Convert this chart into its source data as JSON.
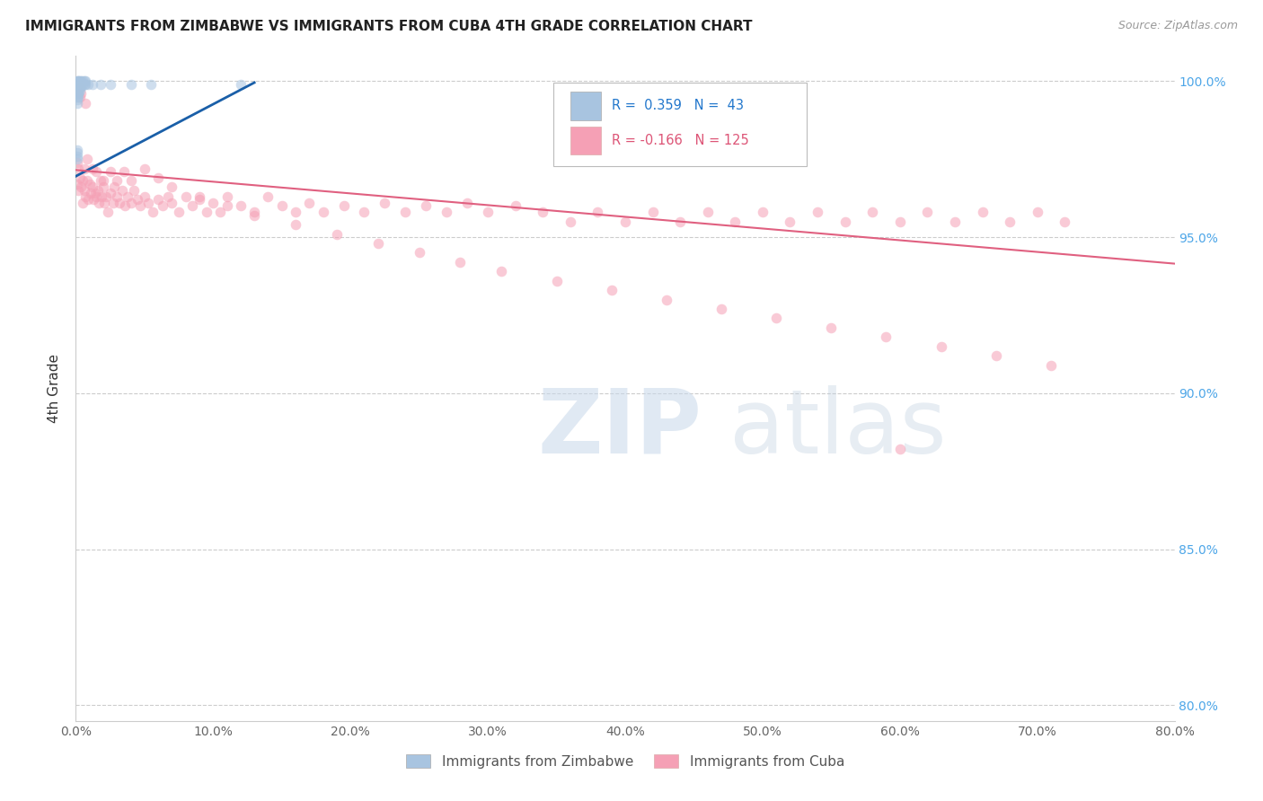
{
  "title": "IMMIGRANTS FROM ZIMBABWE VS IMMIGRANTS FROM CUBA 4TH GRADE CORRELATION CHART",
  "source_text": "Source: ZipAtlas.com",
  "ylabel": "4th Grade",
  "xlim": [
    0.0,
    0.8
  ],
  "ylim": [
    0.795,
    1.008
  ],
  "xtick_labels": [
    "0.0%",
    "",
    "",
    "",
    "",
    "",
    "",
    "",
    "10.0%",
    "",
    "",
    "",
    "",
    "",
    "",
    "",
    "20.0%",
    "",
    "",
    "",
    "",
    "",
    "",
    "",
    "30.0%",
    "",
    "",
    "",
    "",
    "",
    "",
    "",
    "40.0%",
    "",
    "",
    "",
    "",
    "",
    "",
    "",
    "50.0%",
    "",
    "",
    "",
    "",
    "",
    "",
    "",
    "60.0%",
    "",
    "",
    "",
    "",
    "",
    "",
    "",
    "70.0%",
    "",
    "",
    "",
    "",
    "",
    "",
    "",
    "80.0%"
  ],
  "xtick_vals_major": [
    0.0,
    0.1,
    0.2,
    0.3,
    0.4,
    0.5,
    0.6,
    0.7,
    0.8
  ],
  "ytick_vals": [
    0.8,
    0.85,
    0.9,
    0.95,
    1.0
  ],
  "ytick_labels_right": [
    "80.0%",
    "85.0%",
    "90.0%",
    "95.0%",
    "100.0%"
  ],
  "color_zimbabwe": "#a8c4e0",
  "color_cuba": "#f5a0b5",
  "color_line_zimbabwe": "#1a5fa8",
  "color_line_cuba": "#e06080",
  "marker_size": 70,
  "marker_alpha": 0.55,
  "grid_color": "#cccccc",
  "background_color": "#ffffff",
  "zim_line_x": [
    0.0,
    0.13
  ],
  "zim_line_y": [
    0.9695,
    0.9995
  ],
  "cuba_line_x": [
    0.0,
    0.8
  ],
  "cuba_line_y": [
    0.9715,
    0.9415
  ],
  "zimbabwe_x": [
    0.001,
    0.001,
    0.001,
    0.001,
    0.001,
    0.001,
    0.001,
    0.001,
    0.0015,
    0.0015,
    0.0015,
    0.0015,
    0.0015,
    0.002,
    0.002,
    0.002,
    0.002,
    0.002,
    0.002,
    0.003,
    0.003,
    0.003,
    0.003,
    0.004,
    0.004,
    0.004,
    0.005,
    0.005,
    0.006,
    0.006,
    0.007,
    0.007,
    0.009,
    0.012,
    0.018,
    0.025,
    0.04,
    0.055,
    0.12,
    0.0008,
    0.0008,
    0.0008,
    0.0008
  ],
  "zimbabwe_y": [
    1.0,
    0.999,
    0.998,
    0.997,
    0.996,
    0.995,
    0.994,
    0.993,
    1.0,
    0.999,
    0.998,
    0.997,
    0.996,
    1.0,
    0.999,
    0.998,
    0.997,
    0.996,
    0.995,
    1.0,
    0.999,
    0.998,
    0.997,
    1.0,
    0.999,
    0.998,
    1.0,
    0.999,
    1.0,
    0.999,
    1.0,
    0.999,
    0.999,
    0.999,
    0.999,
    0.999,
    0.999,
    0.999,
    0.999,
    0.975,
    0.976,
    0.977,
    0.978
  ],
  "cuba_x": [
    0.001,
    0.001,
    0.002,
    0.002,
    0.003,
    0.004,
    0.005,
    0.005,
    0.006,
    0.006,
    0.007,
    0.008,
    0.009,
    0.01,
    0.011,
    0.012,
    0.013,
    0.014,
    0.015,
    0.016,
    0.017,
    0.018,
    0.019,
    0.02,
    0.021,
    0.022,
    0.023,
    0.025,
    0.027,
    0.028,
    0.03,
    0.032,
    0.034,
    0.036,
    0.038,
    0.04,
    0.042,
    0.045,
    0.047,
    0.05,
    0.053,
    0.056,
    0.06,
    0.063,
    0.067,
    0.07,
    0.075,
    0.08,
    0.085,
    0.09,
    0.095,
    0.1,
    0.105,
    0.11,
    0.12,
    0.13,
    0.14,
    0.15,
    0.16,
    0.17,
    0.18,
    0.195,
    0.21,
    0.225,
    0.24,
    0.255,
    0.27,
    0.285,
    0.3,
    0.32,
    0.34,
    0.36,
    0.38,
    0.4,
    0.42,
    0.44,
    0.46,
    0.48,
    0.5,
    0.52,
    0.54,
    0.56,
    0.58,
    0.6,
    0.62,
    0.64,
    0.66,
    0.68,
    0.7,
    0.72,
    0.015,
    0.02,
    0.025,
    0.03,
    0.035,
    0.04,
    0.008,
    0.012,
    0.06,
    0.05,
    0.07,
    0.09,
    0.11,
    0.13,
    0.16,
    0.19,
    0.22,
    0.25,
    0.28,
    0.31,
    0.35,
    0.39,
    0.43,
    0.47,
    0.51,
    0.55,
    0.59,
    0.63,
    0.67,
    0.71,
    0.003,
    0.003,
    0.004,
    0.007,
    0.6
  ],
  "cuba_y": [
    0.974,
    0.967,
    0.972,
    0.965,
    0.969,
    0.966,
    0.968,
    0.961,
    0.965,
    0.972,
    0.963,
    0.968,
    0.962,
    0.967,
    0.964,
    0.966,
    0.962,
    0.964,
    0.963,
    0.965,
    0.961,
    0.968,
    0.963,
    0.966,
    0.961,
    0.963,
    0.958,
    0.964,
    0.961,
    0.966,
    0.963,
    0.961,
    0.965,
    0.96,
    0.963,
    0.961,
    0.965,
    0.962,
    0.96,
    0.963,
    0.961,
    0.958,
    0.962,
    0.96,
    0.963,
    0.961,
    0.958,
    0.963,
    0.96,
    0.962,
    0.958,
    0.961,
    0.958,
    0.963,
    0.96,
    0.958,
    0.963,
    0.96,
    0.958,
    0.961,
    0.958,
    0.96,
    0.958,
    0.961,
    0.958,
    0.96,
    0.958,
    0.961,
    0.958,
    0.96,
    0.958,
    0.955,
    0.958,
    0.955,
    0.958,
    0.955,
    0.958,
    0.955,
    0.958,
    0.955,
    0.958,
    0.955,
    0.958,
    0.955,
    0.958,
    0.955,
    0.958,
    0.955,
    0.958,
    0.955,
    0.971,
    0.968,
    0.971,
    0.968,
    0.971,
    0.968,
    0.975,
    0.972,
    0.969,
    0.972,
    0.966,
    0.963,
    0.96,
    0.957,
    0.954,
    0.951,
    0.948,
    0.945,
    0.942,
    0.939,
    0.936,
    0.933,
    0.93,
    0.927,
    0.924,
    0.921,
    0.918,
    0.915,
    0.912,
    0.909,
    0.998,
    0.995,
    0.996,
    0.993,
    0.882
  ]
}
